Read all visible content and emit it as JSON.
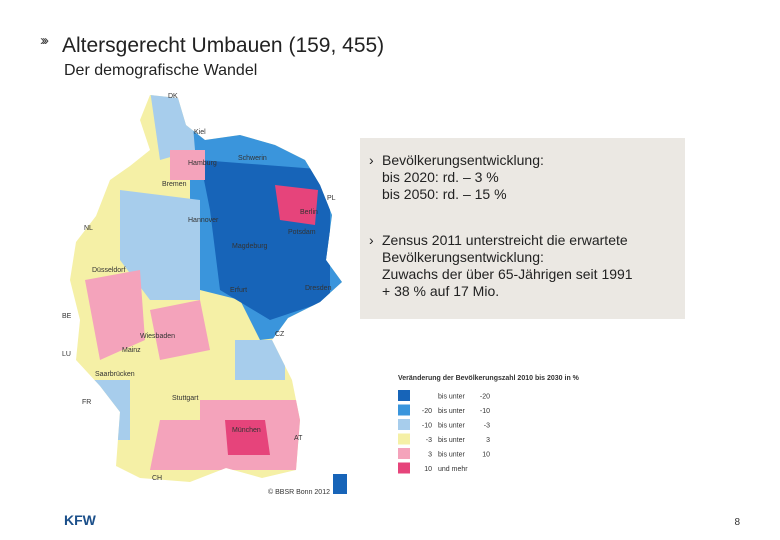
{
  "header": {
    "title": "Altersgerecht Umbauen (159, 455)",
    "subtitle": "Der demografische Wandel"
  },
  "bullets": [
    {
      "lines": [
        "Bevölkerungsentwicklung:",
        "bis 2020: rd. – 3 %",
        "bis 2050: rd. – 15 %"
      ]
    },
    {
      "lines": [
        "Zensus 2011 unterstreicht die erwartete",
        "Bevölkerungsentwicklung:",
        "Zuwachs der über 65-Jährigen seit 1991",
        "+ 38 % auf 17 Mio."
      ]
    }
  ],
  "map": {
    "labels": [
      "DK",
      "Kiel",
      "Schwerin",
      "Hamburg",
      "Bremen",
      "Hannover",
      "Berlin",
      "Potsdam",
      "Magdeburg",
      "NL",
      "PL",
      "Düsseldorf",
      "Erfurt",
      "Dresden",
      "BE",
      "Wiesbaden",
      "Mainz",
      "CZ",
      "LU",
      "Saarbrücken",
      "FR",
      "Stuttgart",
      "München",
      "AT",
      "CH"
    ],
    "credit": "© BBSR Bonn 2012"
  },
  "legend": {
    "title": "Veränderung der Bevölkerungszahl 2010 bis 2030 in %",
    "rows": [
      {
        "color": "#1764b8",
        "text": "bis unter",
        "to": "-20"
      },
      {
        "color": "#3a95dc",
        "from": "-20",
        "text": "bis unter",
        "to": "-10"
      },
      {
        "color": "#a7cdec",
        "from": "-10",
        "text": "bis unter",
        "to": "-3"
      },
      {
        "color": "#f5f0a6",
        "from": "-3",
        "text": "bis unter",
        "to": "3"
      },
      {
        "color": "#f4a3bb",
        "from": "3",
        "text": "bis unter",
        "to": "10"
      },
      {
        "color": "#e6447b",
        "from": "10",
        "text": "und mehr"
      }
    ]
  },
  "footer": {
    "logo": "KFW",
    "page": "8"
  }
}
